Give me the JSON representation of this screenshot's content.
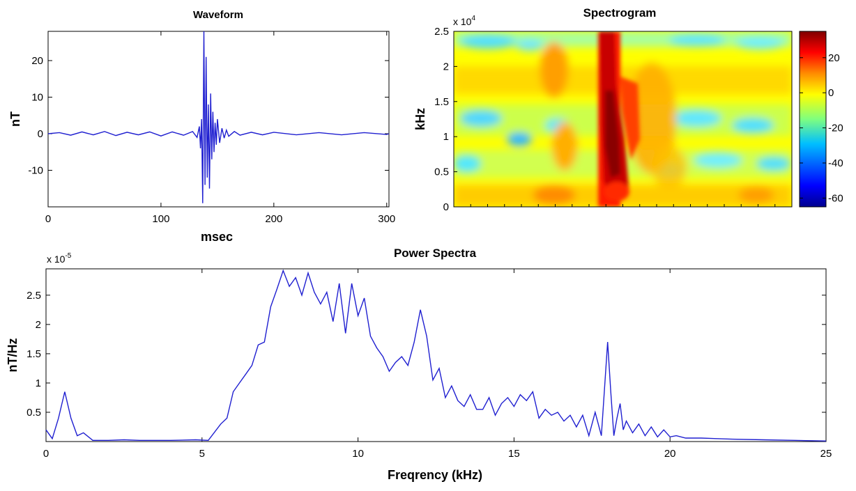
{
  "chart_data": [
    {
      "id": "waveform",
      "type": "line",
      "title": "Waveform",
      "xlabel": "msec",
      "ylabel": "nT",
      "xlim": [
        0,
        302
      ],
      "ylim": [
        -20,
        28
      ],
      "xticks": [
        0,
        100,
        200,
        300
      ],
      "yticks": [
        -10,
        0,
        10,
        20
      ],
      "line_color": "#1f1fd0",
      "series": [
        {
          "x": [
            0,
            10,
            20,
            30,
            40,
            50,
            60,
            70,
            80,
            90,
            100,
            110,
            120,
            128,
            132,
            134,
            135,
            136,
            137,
            138,
            139,
            140,
            141,
            142,
            143,
            144,
            145,
            146,
            147,
            148,
            149,
            150,
            152,
            154,
            156,
            158,
            160,
            165,
            170,
            180,
            190,
            200,
            220,
            240,
            260,
            280,
            300,
            302
          ],
          "y": [
            0,
            0.3,
            -0.4,
            0.5,
            -0.3,
            0.6,
            -0.5,
            0.4,
            -0.3,
            0.5,
            -0.6,
            0.5,
            -0.4,
            0.6,
            -1,
            2,
            -4,
            4,
            -19,
            28,
            -14,
            21,
            -12,
            8,
            -15,
            11,
            -7,
            6,
            -5,
            3,
            -3,
            4,
            -2.5,
            1.5,
            -1.2,
            1,
            -0.7,
            0.6,
            -0.4,
            0.4,
            -0.3,
            0.4,
            -0.3,
            0.3,
            -0.3,
            0.3,
            -0.2,
            0
          ]
        }
      ]
    },
    {
      "id": "spectrogram",
      "type": "heatmap",
      "title": "Spectrogram",
      "ylabel": "kHz",
      "ylim": [
        0,
        2.5
      ],
      "yticks": [
        0,
        0.5,
        1,
        1.5,
        2,
        2.5
      ],
      "y_multiplier": "x 10",
      "y_multiplier_exp": "4",
      "colorbar_ticks": [
        20,
        0,
        -20,
        -40,
        -60
      ],
      "colorbar_range": [
        -65,
        35
      ],
      "colormap": [
        "#00008f",
        "#0000ff",
        "#00bfff",
        "#7fff7f",
        "#ffff00",
        "#ff8c00",
        "#ff0000",
        "#7f0000"
      ]
    },
    {
      "id": "power_spectra",
      "type": "line",
      "title": "Power Spectra",
      "xlabel": "Freqrency (kHz)",
      "ylabel": "nT/Hz",
      "xlim": [
        0,
        25
      ],
      "ylim": [
        0,
        2.95
      ],
      "xticks": [
        0,
        5,
        10,
        15,
        20,
        25
      ],
      "yticks": [
        0.5,
        1,
        1.5,
        2,
        2.5
      ],
      "y_multiplier": "x 10",
      "y_multiplier_exp": "-5",
      "line_color": "#1f1fd0",
      "series": [
        {
          "x": [
            0,
            0.2,
            0.4,
            0.6,
            0.8,
            1.0,
            1.2,
            1.5,
            2,
            2.5,
            3,
            4,
            4.8,
            5.2,
            5.6,
            5.8,
            6.0,
            6.2,
            6.4,
            6.6,
            6.8,
            7.0,
            7.2,
            7.4,
            7.6,
            7.8,
            8.0,
            8.2,
            8.4,
            8.6,
            8.8,
            9.0,
            9.2,
            9.4,
            9.6,
            9.8,
            10.0,
            10.2,
            10.4,
            10.6,
            10.8,
            11.0,
            11.2,
            11.4,
            11.6,
            11.8,
            12.0,
            12.2,
            12.4,
            12.6,
            12.8,
            13.0,
            13.2,
            13.4,
            13.6,
            13.8,
            14.0,
            14.2,
            14.4,
            14.6,
            14.8,
            15.0,
            15.2,
            15.4,
            15.6,
            15.8,
            16.0,
            16.2,
            16.4,
            16.6,
            16.8,
            17.0,
            17.2,
            17.4,
            17.6,
            17.8,
            18.0,
            18.1,
            18.2,
            18.3,
            18.4,
            18.5,
            18.6,
            18.8,
            19.0,
            19.2,
            19.4,
            19.6,
            19.8,
            20.0,
            20.2,
            20.5,
            21,
            21.5,
            22,
            23,
            24,
            25
          ],
          "y": [
            0.2,
            0.05,
            0.4,
            0.85,
            0.4,
            0.1,
            0.15,
            0.02,
            0.02,
            0.03,
            0.02,
            0.02,
            0.03,
            0.02,
            0.3,
            0.4,
            0.85,
            1.0,
            1.15,
            1.3,
            1.65,
            1.7,
            2.3,
            2.6,
            2.92,
            2.65,
            2.8,
            2.5,
            2.88,
            2.55,
            2.35,
            2.55,
            2.05,
            2.7,
            1.85,
            2.7,
            2.15,
            2.45,
            1.8,
            1.6,
            1.45,
            1.2,
            1.35,
            1.45,
            1.3,
            1.7,
            2.25,
            1.8,
            1.05,
            1.25,
            0.75,
            0.95,
            0.7,
            0.6,
            0.8,
            0.55,
            0.55,
            0.75,
            0.45,
            0.65,
            0.75,
            0.6,
            0.8,
            0.7,
            0.85,
            0.4,
            0.55,
            0.45,
            0.5,
            0.35,
            0.45,
            0.25,
            0.45,
            0.1,
            0.5,
            0.1,
            1.7,
            0.85,
            0.1,
            0.4,
            0.65,
            0.2,
            0.35,
            0.15,
            0.3,
            0.1,
            0.25,
            0.08,
            0.2,
            0.08,
            0.1,
            0.06,
            0.06,
            0.05,
            0.04,
            0.03,
            0.02,
            0.01
          ]
        }
      ]
    }
  ]
}
